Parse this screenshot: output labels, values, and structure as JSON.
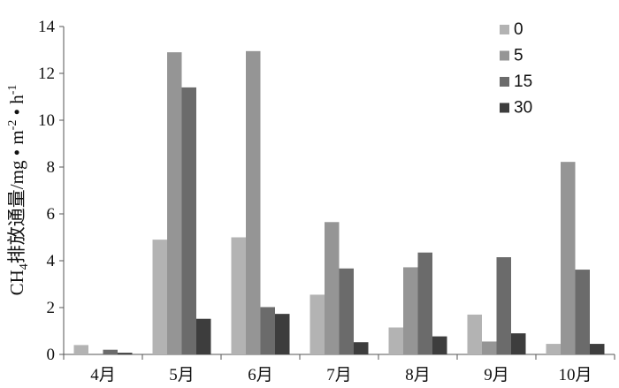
{
  "chart_data": {
    "type": "bar",
    "title": "",
    "xlabel": "",
    "ylabel": "CH4排放通量/mg • m-2 • h-1",
    "ylabel_parts": {
      "base": "CH",
      "sub": "4",
      "mid": "排放通量/mg • m",
      "sup1": "-2",
      "mid2": " • h",
      "sup2": "-1"
    },
    "categories": [
      "4月",
      "5月",
      "6月",
      "7月",
      "8月",
      "9月",
      "10月"
    ],
    "ylim": [
      0,
      14
    ],
    "yticks": [
      0,
      2,
      4,
      6,
      8,
      10,
      12,
      14
    ],
    "grid": false,
    "legend_position": "top-right",
    "series": [
      {
        "name": "0",
        "color": "#b3b3b3",
        "values": [
          0.4,
          4.9,
          5.0,
          2.55,
          1.15,
          1.7,
          0.45
        ]
      },
      {
        "name": "5",
        "color": "#959595",
        "values": [
          0.0,
          12.9,
          12.95,
          5.65,
          3.72,
          0.55,
          8.22
        ]
      },
      {
        "name": "15",
        "color": "#6b6b6b",
        "values": [
          0.2,
          11.4,
          2.02,
          3.67,
          4.35,
          4.15,
          3.62
        ]
      },
      {
        "name": "30",
        "color": "#3d3d3d",
        "values": [
          0.07,
          1.52,
          1.73,
          0.52,
          0.77,
          0.9,
          0.45
        ]
      }
    ]
  }
}
